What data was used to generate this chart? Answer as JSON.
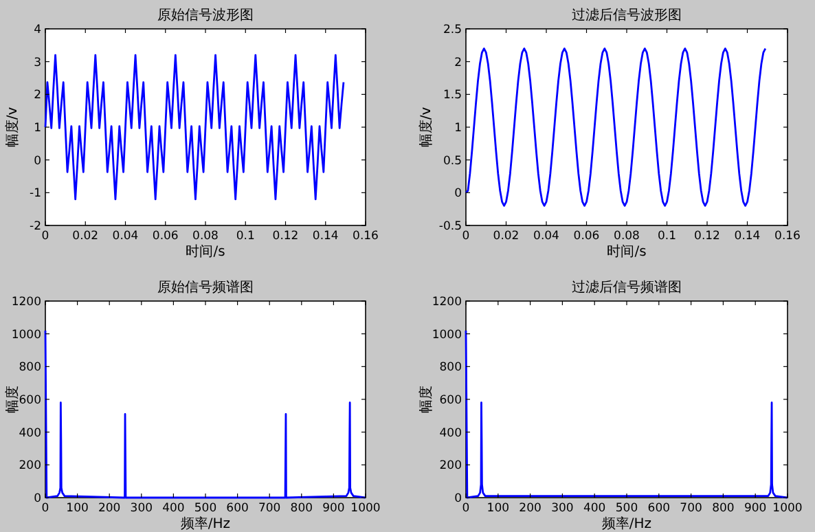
{
  "chart_data": [
    {
      "type": "line",
      "title": "原始信号波形图",
      "xlabel": "时间/s",
      "ylabel": "幅度/v",
      "xlim": [
        0,
        0.16
      ],
      "ylim": [
        -2,
        4
      ],
      "xticks": [
        0,
        0.02,
        0.04,
        0.06,
        0.08,
        0.1,
        0.12,
        0.14,
        0.16
      ],
      "yticks": [
        -2,
        -1,
        0,
        1,
        2,
        3,
        4
      ],
      "x": [
        0,
        0.001,
        0.002,
        0.003,
        0.004,
        0.005,
        0.006,
        0.007,
        0.008,
        0.009,
        0.01,
        0.011,
        0.012,
        0.013,
        0.014,
        0.015,
        0.016,
        0.017,
        0.018,
        0.019,
        0.02,
        0.021,
        0.022,
        0.023,
        0.024,
        0.025,
        0.026,
        0.027,
        0.028,
        0.029,
        0.03,
        0.031,
        0.032,
        0.033,
        0.034,
        0.035,
        0.036,
        0.037,
        0.038,
        0.039,
        0.04,
        0.041,
        0.042,
        0.043,
        0.044,
        0.045,
        0.046,
        0.047,
        0.048,
        0.049,
        0.05,
        0.051,
        0.052,
        0.053,
        0.054,
        0.055,
        0.056,
        0.057,
        0.058,
        0.059,
        0.06,
        0.061,
        0.062,
        0.063,
        0.064,
        0.065,
        0.066,
        0.067,
        0.068,
        0.069,
        0.07,
        0.071,
        0.072,
        0.073,
        0.074,
        0.075,
        0.076,
        0.077,
        0.078,
        0.079,
        0.08,
        0.081,
        0.082,
        0.083,
        0.084,
        0.085,
        0.086,
        0.087,
        0.088,
        0.089,
        0.09,
        0.091,
        0.092,
        0.093,
        0.094,
        0.095,
        0.096,
        0.097,
        0.098,
        0.099,
        0.1,
        0.101,
        0.102,
        0.103,
        0.104,
        0.105,
        0.106,
        0.107,
        0.108,
        0.109,
        0.11,
        0.111,
        0.112,
        0.113,
        0.114,
        0.115,
        0.116,
        0.117,
        0.118,
        0.119,
        0.12,
        0.121,
        0.122,
        0.123,
        0.124,
        0.125,
        0.126,
        0.127,
        0.128,
        0.129,
        0.13,
        0.131,
        0.132,
        0.133,
        0.134,
        0.135,
        0.136,
        0.137,
        0.138,
        0.139,
        0.14,
        0.141,
        0.142,
        0.143,
        0.144,
        0.145,
        0.146,
        0.147,
        0.148,
        0.149
      ],
      "series": [
        {
          "color": "#0000ff",
          "values": [
            1,
            2.37,
            1.71,
            0.97,
            2.14,
            3.2,
            2.14,
            0.97,
            1.71,
            2.37,
            1,
            -0.37,
            0.29,
            1.03,
            -0.14,
            -1.2,
            -0.14,
            1.03,
            0.29,
            -0.37,
            1,
            2.37,
            1.71,
            0.97,
            2.14,
            3.2,
            2.14,
            0.97,
            1.71,
            2.37,
            1,
            -0.37,
            0.29,
            1.03,
            -0.14,
            -1.2,
            -0.14,
            1.03,
            0.29,
            -0.37,
            1,
            2.37,
            1.71,
            0.97,
            2.14,
            3.2,
            2.14,
            0.97,
            1.71,
            2.37,
            1,
            -0.37,
            0.29,
            1.03,
            -0.14,
            -1.2,
            -0.14,
            1.03,
            0.29,
            -0.37,
            1,
            2.37,
            1.71,
            0.97,
            2.14,
            3.2,
            2.14,
            0.97,
            1.71,
            2.37,
            1,
            -0.37,
            0.29,
            1.03,
            -0.14,
            -1.2,
            -0.14,
            1.03,
            0.29,
            -0.37,
            1,
            2.37,
            1.71,
            0.97,
            2.14,
            3.2,
            2.14,
            0.97,
            1.71,
            2.37,
            1,
            -0.37,
            0.29,
            1.03,
            -0.14,
            -1.2,
            -0.14,
            1.03,
            0.29,
            -0.37,
            1,
            2.37,
            1.71,
            0.97,
            2.14,
            3.2,
            2.14,
            0.97,
            1.71,
            2.37,
            1,
            -0.37,
            0.29,
            1.03,
            -0.14,
            -1.2,
            -0.14,
            1.03,
            0.29,
            -0.37,
            1,
            2.37,
            1.71,
            0.97,
            2.14,
            3.2,
            2.14,
            0.97,
            1.71,
            2.37,
            1,
            -0.37,
            0.29,
            1.03,
            -0.14,
            -1.2,
            -0.14,
            1.03,
            0.29,
            -0.37,
            1,
            2.37,
            1.71,
            0.97,
            2.14,
            3.2,
            2.14,
            0.97,
            1.71,
            2.37
          ]
        }
      ]
    },
    {
      "type": "line",
      "title": "过滤后信号波形图",
      "xlabel": "时间/s",
      "ylabel": "幅度/v",
      "xlim": [
        0,
        0.16
      ],
      "ylim": [
        -0.5,
        2.5
      ],
      "xticks": [
        0,
        0.02,
        0.04,
        0.06,
        0.08,
        0.1,
        0.12,
        0.14,
        0.16
      ],
      "yticks": [
        -0.5,
        0,
        0.5,
        1,
        1.5,
        2,
        2.5
      ],
      "x": [
        0,
        0.001,
        0.002,
        0.003,
        0.004,
        0.005,
        0.006,
        0.007,
        0.008,
        0.009,
        0.01,
        0.011,
        0.012,
        0.013,
        0.014,
        0.015,
        0.016,
        0.017,
        0.018,
        0.019,
        0.02,
        0.021,
        0.022,
        0.023,
        0.024,
        0.025,
        0.026,
        0.027,
        0.028,
        0.029,
        0.03,
        0.031,
        0.032,
        0.033,
        0.034,
        0.035,
        0.036,
        0.037,
        0.038,
        0.039,
        0.04,
        0.041,
        0.042,
        0.043,
        0.044,
        0.045,
        0.046,
        0.047,
        0.048,
        0.049,
        0.05,
        0.051,
        0.052,
        0.053,
        0.054,
        0.055,
        0.056,
        0.057,
        0.058,
        0.059,
        0.06,
        0.061,
        0.062,
        0.063,
        0.064,
        0.065,
        0.066,
        0.067,
        0.068,
        0.069,
        0.07,
        0.071,
        0.072,
        0.073,
        0.074,
        0.075,
        0.076,
        0.077,
        0.078,
        0.079,
        0.08,
        0.081,
        0.082,
        0.083,
        0.084,
        0.085,
        0.086,
        0.087,
        0.088,
        0.089,
        0.09,
        0.091,
        0.092,
        0.093,
        0.094,
        0.095,
        0.096,
        0.097,
        0.098,
        0.099,
        0.1,
        0.101,
        0.102,
        0.103,
        0.104,
        0.105,
        0.106,
        0.107,
        0.108,
        0.109,
        0.11,
        0.111,
        0.112,
        0.113,
        0.114,
        0.115,
        0.116,
        0.117,
        0.118,
        0.119,
        0.12,
        0.121,
        0.122,
        0.123,
        0.124,
        0.125,
        0.126,
        0.127,
        0.128,
        0.129,
        0.13,
        0.131,
        0.132,
        0.133,
        0.134,
        0.135,
        0.136,
        0.137,
        0.138,
        0.139,
        0.14,
        0.141,
        0.142,
        0.143,
        0.144,
        0.145,
        0.146,
        0.147,
        0.148,
        0.149
      ],
      "series": [
        {
          "color": "#0000ff",
          "values": [
            0,
            0.03,
            0.29,
            0.63,
            1,
            1.37,
            1.71,
            1.97,
            2.14,
            2.2,
            2.14,
            1.97,
            1.71,
            1.37,
            1,
            0.63,
            0.29,
            0.03,
            -0.14,
            -0.2,
            -0.14,
            0.03,
            0.29,
            0.63,
            1,
            1.37,
            1.71,
            1.97,
            2.14,
            2.2,
            2.14,
            1.97,
            1.71,
            1.37,
            1,
            0.63,
            0.29,
            0.03,
            -0.14,
            -0.2,
            -0.14,
            0.03,
            0.29,
            0.63,
            1,
            1.37,
            1.71,
            1.97,
            2.14,
            2.2,
            2.14,
            1.97,
            1.71,
            1.37,
            1,
            0.63,
            0.29,
            0.03,
            -0.14,
            -0.2,
            -0.14,
            0.03,
            0.29,
            0.63,
            1,
            1.37,
            1.71,
            1.97,
            2.14,
            2.2,
            2.14,
            1.97,
            1.71,
            1.37,
            1,
            0.63,
            0.29,
            0.03,
            -0.14,
            -0.2,
            -0.14,
            0.03,
            0.29,
            0.63,
            1,
            1.37,
            1.71,
            1.97,
            2.14,
            2.2,
            2.14,
            1.97,
            1.71,
            1.37,
            1,
            0.63,
            0.29,
            0.03,
            -0.14,
            -0.2,
            -0.14,
            0.03,
            0.29,
            0.63,
            1,
            1.37,
            1.71,
            1.97,
            2.14,
            2.2,
            2.14,
            1.97,
            1.71,
            1.37,
            1,
            0.63,
            0.29,
            0.03,
            -0.14,
            -0.2,
            -0.14,
            0.03,
            0.29,
            0.63,
            1,
            1.37,
            1.71,
            1.97,
            2.14,
            2.2,
            2.14,
            1.97,
            1.71,
            1.37,
            1,
            0.63,
            0.29,
            0.03,
            -0.14,
            -0.2,
            -0.14,
            0.03,
            0.29,
            0.63,
            1,
            1.37,
            1.71,
            1.97,
            2.14,
            2.2
          ]
        }
      ]
    },
    {
      "type": "line",
      "title": "原始信号频谱图",
      "xlabel": "频率/Hz",
      "ylabel": "幅度",
      "xlim": [
        0,
        1000
      ],
      "ylim": [
        0,
        1200
      ],
      "xticks": [
        0,
        100,
        200,
        300,
        400,
        500,
        600,
        700,
        800,
        900,
        1000
      ],
      "yticks": [
        0,
        200,
        400,
        600,
        800,
        1000,
        1200
      ],
      "x": [
        0,
        4,
        38,
        44,
        47,
        48,
        49,
        50,
        53,
        60,
        245,
        248,
        249,
        250,
        251,
        254,
        746,
        749,
        750,
        751,
        752,
        940,
        946,
        949,
        950,
        951,
        952,
        955,
        962,
        999
      ],
      "series": [
        {
          "color": "#0000ff",
          "values": [
            1020,
            0,
            10,
            30,
            60,
            580,
            360,
            60,
            30,
            10,
            0,
            0,
            510,
            260,
            0,
            0,
            0,
            0,
            260,
            510,
            0,
            10,
            30,
            60,
            360,
            580,
            60,
            30,
            10,
            0
          ]
        }
      ]
    },
    {
      "type": "line",
      "title": "过滤后信号频谱图",
      "xlabel": "频率/Hz",
      "ylabel": "幅度",
      "xlim": [
        0,
        1000
      ],
      "ylim": [
        0,
        1200
      ],
      "xticks": [
        0,
        100,
        200,
        300,
        400,
        500,
        600,
        700,
        800,
        900,
        1000
      ],
      "yticks": [
        0,
        200,
        400,
        600,
        800,
        1000,
        1200
      ],
      "x": [
        0,
        4,
        38,
        44,
        47,
        48,
        49,
        50,
        53,
        60,
        940,
        946,
        949,
        950,
        951,
        952,
        955,
        962,
        999
      ],
      "series": [
        {
          "color": "#0000ff",
          "values": [
            1020,
            0,
            10,
            30,
            80,
            580,
            360,
            80,
            30,
            10,
            10,
            30,
            80,
            360,
            580,
            80,
            30,
            10,
            0
          ]
        }
      ]
    }
  ]
}
